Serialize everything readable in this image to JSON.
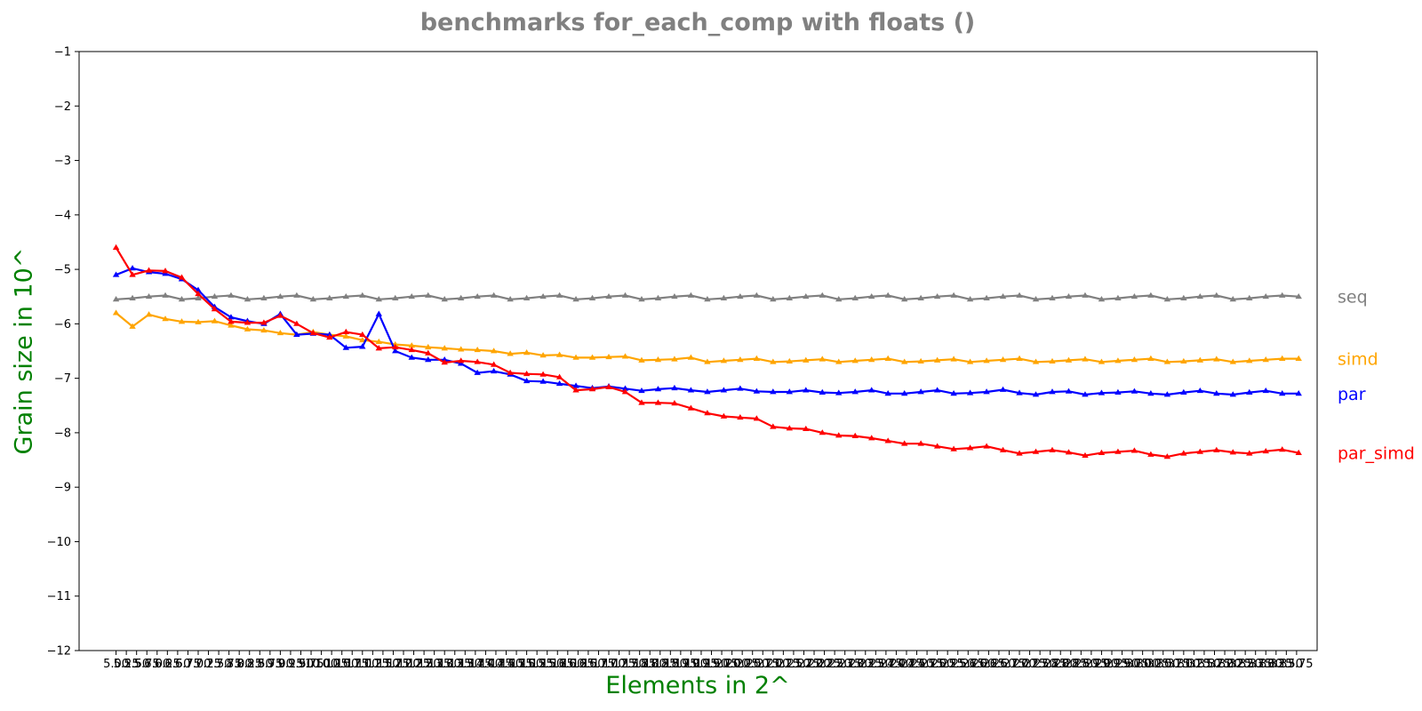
{
  "chart_data": {
    "type": "line",
    "title": "benchmarks for_each_comp with floats  ()",
    "xlabel": "Elements in 2^",
    "ylabel": "Grain size in 10^",
    "ylim": [
      -12,
      -1
    ],
    "xlim": [
      4.1,
      34.25
    ],
    "yticks": [
      -1,
      -2,
      -3,
      -4,
      -5,
      -6,
      -7,
      -8,
      -9,
      -10,
      -11,
      -12
    ],
    "xtick_labels": [
      "5.00",
      "5.25",
      "5.50",
      "5.75",
      "6.00",
      "6.25",
      "6.50",
      "6.75",
      "7.00",
      "7.25",
      "7.50",
      "7.75",
      "8.00",
      "8.25",
      "8.50",
      "8.75",
      "9.00",
      "9.25",
      "9.50",
      "9.75",
      "10.00",
      "10.25",
      "10.50",
      "10.75",
      "11.00",
      "11.25",
      "11.50",
      "11.75",
      "12.00",
      "12.25",
      "12.50",
      "12.75",
      "13.00",
      "13.25",
      "13.50",
      "13.75",
      "14.00",
      "14.25",
      "14.50",
      "14.75",
      "15.00",
      "15.25",
      "15.50",
      "15.75",
      "16.00",
      "16.25",
      "16.50",
      "16.75",
      "17.00",
      "17.25",
      "17.50",
      "17.75",
      "18.00",
      "18.25",
      "18.50",
      "18.75",
      "19.00",
      "19.25",
      "19.50",
      "19.75",
      "20.00",
      "20.25",
      "20.50",
      "20.75",
      "21.00",
      "21.25",
      "21.50",
      "21.75",
      "22.00",
      "22.25",
      "22.50",
      "22.75",
      "23.00",
      "23.25",
      "23.50",
      "23.75",
      "24.00",
      "24.25",
      "24.50",
      "24.75",
      "25.00",
      "25.25",
      "25.50",
      "25.75",
      "26.00",
      "26.25",
      "26.50",
      "26.75",
      "27.00",
      "27.25",
      "27.50",
      "27.75",
      "28.00",
      "28.25",
      "28.50",
      "28.75",
      "29.00",
      "29.25",
      "29.50",
      "29.75",
      "30.00",
      "30.25",
      "30.50",
      "30.75",
      "31.00",
      "31.25",
      "31.50",
      "31.75",
      "32.00",
      "32.25",
      "32.50",
      "32.75",
      "33.00",
      "33.25",
      "33.50",
      "33.75"
    ],
    "legend_placement": "right-outside",
    "grid": false,
    "series": [
      {
        "name": "seq",
        "color": "#808080",
        "x": [
          5.0,
          5.4,
          5.8,
          6.2,
          6.6,
          7.0,
          7.4,
          7.8,
          8.2,
          8.6,
          9.0,
          9.4,
          9.8,
          10.2,
          10.6,
          11.0,
          11.4,
          11.8,
          12.2,
          12.6,
          13.0,
          13.4,
          13.8,
          14.2,
          14.6,
          15.0,
          15.4,
          15.8,
          16.2,
          16.6,
          17.0,
          17.4,
          17.8,
          18.2,
          18.6,
          19.0,
          19.4,
          19.8,
          20.2,
          20.6,
          21.0,
          21.4,
          21.8,
          22.2,
          22.6,
          23.0,
          23.4,
          23.8,
          24.2,
          24.6,
          25.0,
          25.4,
          25.8,
          26.2,
          26.6,
          27.0,
          27.4,
          27.8,
          28.2,
          28.6,
          29.0,
          29.4,
          29.8,
          30.2,
          30.6,
          31.0,
          31.4,
          31.8,
          32.2,
          32.6,
          33.0,
          33.4,
          33.8
        ],
        "y": [
          -5.55,
          -5.53,
          -5.5,
          -5.48,
          -5.55,
          -5.53,
          -5.5,
          -5.48,
          -5.55,
          -5.53,
          -5.5,
          -5.48,
          -5.55,
          -5.53,
          -5.5,
          -5.48,
          -5.55,
          -5.53,
          -5.5,
          -5.48,
          -5.55,
          -5.53,
          -5.5,
          -5.48,
          -5.55,
          -5.53,
          -5.5,
          -5.48,
          -5.55,
          -5.53,
          -5.5,
          -5.48,
          -5.55,
          -5.53,
          -5.5,
          -5.48,
          -5.55,
          -5.53,
          -5.5,
          -5.48,
          -5.55,
          -5.53,
          -5.5,
          -5.48,
          -5.55,
          -5.53,
          -5.5,
          -5.48,
          -5.55,
          -5.53,
          -5.5,
          -5.48,
          -5.55,
          -5.53,
          -5.5,
          -5.48,
          -5.55,
          -5.53,
          -5.5,
          -5.48,
          -5.55,
          -5.53,
          -5.5,
          -5.48,
          -5.55,
          -5.53,
          -5.5,
          -5.48,
          -5.55,
          -5.53,
          -5.5,
          -5.48,
          -5.5
        ]
      },
      {
        "name": "simd",
        "color": "#ffa500",
        "x": [
          5.0,
          5.4,
          5.8,
          6.2,
          6.6,
          7.0,
          7.4,
          7.8,
          8.2,
          8.6,
          9.0,
          9.4,
          9.8,
          10.2,
          10.6,
          11.0,
          11.4,
          11.8,
          12.2,
          12.6,
          13.0,
          13.4,
          13.8,
          14.2,
          14.6,
          15.0,
          15.4,
          15.8,
          16.2,
          16.6,
          17.0,
          17.4,
          17.8,
          18.2,
          18.6,
          19.0,
          19.4,
          19.8,
          20.2,
          20.6,
          21.0,
          21.4,
          21.8,
          22.2,
          22.6,
          23.0,
          23.4,
          23.8,
          24.2,
          24.6,
          25.0,
          25.4,
          25.8,
          26.2,
          26.6,
          27.0,
          27.4,
          27.8,
          28.2,
          28.6,
          29.0,
          29.4,
          29.8,
          30.2,
          30.6,
          31.0,
          31.4,
          31.8,
          32.2,
          32.6,
          33.0,
          33.4,
          33.8
        ],
        "y": [
          -5.8,
          -6.05,
          -5.83,
          -5.91,
          -5.96,
          -5.97,
          -5.95,
          -6.03,
          -6.1,
          -6.12,
          -6.17,
          -6.2,
          -6.15,
          -6.2,
          -6.23,
          -6.3,
          -6.33,
          -6.38,
          -6.4,
          -6.43,
          -6.45,
          -6.47,
          -6.48,
          -6.5,
          -6.55,
          -6.53,
          -6.58,
          -6.57,
          -6.62,
          -6.62,
          -6.61,
          -6.6,
          -6.67,
          -6.66,
          -6.65,
          -6.62,
          -6.7,
          -6.68,
          -6.66,
          -6.64,
          -6.7,
          -6.69,
          -6.67,
          -6.65,
          -6.7,
          -6.68,
          -6.66,
          -6.64,
          -6.7,
          -6.69,
          -6.67,
          -6.65,
          -6.7,
          -6.68,
          -6.66,
          -6.64,
          -6.7,
          -6.69,
          -6.67,
          -6.65,
          -6.7,
          -6.68,
          -6.66,
          -6.64,
          -6.7,
          -6.69,
          -6.67,
          -6.65,
          -6.7,
          -6.68,
          -6.66,
          -6.64,
          -6.64
        ]
      },
      {
        "name": "par",
        "color": "#0000ff",
        "x": [
          5.0,
          5.4,
          5.8,
          6.2,
          6.6,
          7.0,
          7.4,
          7.8,
          8.2,
          8.6,
          9.0,
          9.4,
          9.8,
          10.2,
          10.6,
          11.0,
          11.4,
          11.8,
          12.2,
          12.6,
          13.0,
          13.4,
          13.8,
          14.2,
          14.6,
          15.0,
          15.4,
          15.8,
          16.2,
          16.6,
          17.0,
          17.4,
          17.8,
          18.2,
          18.6,
          19.0,
          19.4,
          19.8,
          20.2,
          20.6,
          21.0,
          21.4,
          21.8,
          22.2,
          22.6,
          23.0,
          23.4,
          23.8,
          24.2,
          24.6,
          25.0,
          25.4,
          25.8,
          26.2,
          26.6,
          27.0,
          27.4,
          27.8,
          28.2,
          28.6,
          29.0,
          29.4,
          29.8,
          30.2,
          30.6,
          31.0,
          31.4,
          31.8,
          32.2,
          32.6,
          33.0,
          33.4,
          33.8
        ],
        "y": [
          -5.1,
          -4.98,
          -5.05,
          -5.08,
          -5.18,
          -5.38,
          -5.69,
          -5.88,
          -5.95,
          -6.0,
          -5.82,
          -6.2,
          -6.18,
          -6.2,
          -6.44,
          -6.42,
          -5.82,
          -6.5,
          -6.62,
          -6.66,
          -6.66,
          -6.73,
          -6.9,
          -6.87,
          -6.93,
          -7.05,
          -7.06,
          -7.1,
          -7.14,
          -7.18,
          -7.15,
          -7.19,
          -7.23,
          -7.2,
          -7.18,
          -7.22,
          -7.25,
          -7.22,
          -7.19,
          -7.24,
          -7.25,
          -7.25,
          -7.22,
          -7.26,
          -7.27,
          -7.25,
          -7.22,
          -7.28,
          -7.28,
          -7.25,
          -7.22,
          -7.28,
          -7.27,
          -7.25,
          -7.21,
          -7.27,
          -7.3,
          -7.25,
          -7.24,
          -7.3,
          -7.27,
          -7.26,
          -7.24,
          -7.28,
          -7.3,
          -7.26,
          -7.23,
          -7.28,
          -7.3,
          -7.26,
          -7.23,
          -7.28,
          -7.28
        ]
      },
      {
        "name": "par_simd",
        "color": "#ff0000",
        "x": [
          5.0,
          5.4,
          5.8,
          6.2,
          6.6,
          7.0,
          7.4,
          7.8,
          8.2,
          8.6,
          9.0,
          9.4,
          9.8,
          10.2,
          10.6,
          11.0,
          11.4,
          11.8,
          12.2,
          12.6,
          13.0,
          13.4,
          13.8,
          14.2,
          14.6,
          15.0,
          15.4,
          15.8,
          16.2,
          16.6,
          17.0,
          17.4,
          17.8,
          18.2,
          18.6,
          19.0,
          19.4,
          19.8,
          20.2,
          20.6,
          21.0,
          21.4,
          21.8,
          22.2,
          22.6,
          23.0,
          23.4,
          23.8,
          24.2,
          24.6,
          25.0,
          25.4,
          25.8,
          26.2,
          26.6,
          27.0,
          27.4,
          27.8,
          28.2,
          28.6,
          29.0,
          29.4,
          29.8,
          30.2,
          30.6,
          31.0,
          31.4,
          31.8,
          32.2,
          32.6,
          33.0,
          33.4,
          33.8
        ],
        "y": [
          -4.6,
          -5.1,
          -5.02,
          -5.03,
          -5.15,
          -5.45,
          -5.73,
          -5.96,
          -5.98,
          -5.98,
          -5.85,
          -6.0,
          -6.17,
          -6.25,
          -6.15,
          -6.2,
          -6.45,
          -6.43,
          -6.48,
          -6.54,
          -6.71,
          -6.68,
          -6.7,
          -6.75,
          -6.9,
          -6.92,
          -6.93,
          -6.98,
          -7.22,
          -7.2,
          -7.16,
          -7.25,
          -7.45,
          -7.45,
          -7.46,
          -7.55,
          -7.64,
          -7.7,
          -7.72,
          -7.74,
          -7.89,
          -7.92,
          -7.93,
          -8.0,
          -8.05,
          -8.06,
          -8.1,
          -8.15,
          -8.2,
          -8.2,
          -8.25,
          -8.3,
          -8.28,
          -8.25,
          -8.32,
          -8.38,
          -8.35,
          -8.32,
          -8.36,
          -8.42,
          -8.37,
          -8.35,
          -8.33,
          -8.4,
          -8.44,
          -8.38,
          -8.35,
          -8.32,
          -8.36,
          -8.38,
          -8.34,
          -8.31,
          -8.37
        ]
      }
    ]
  }
}
